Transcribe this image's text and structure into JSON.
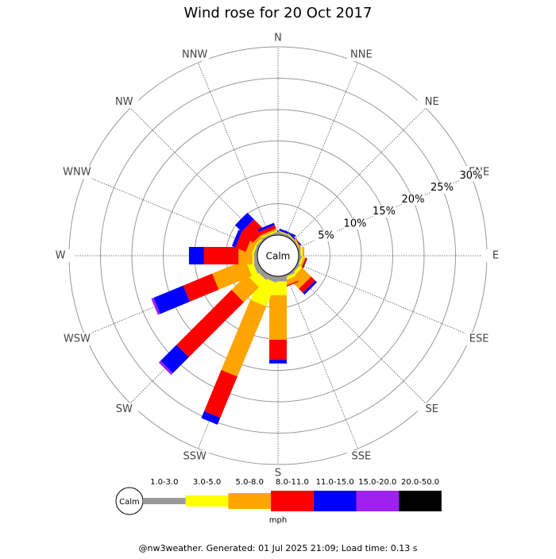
{
  "chart_data": {
    "type": "windrose",
    "title": "Wind rose for 20 Oct 2017",
    "categories": [
      "N",
      "NNE",
      "NE",
      "ENE",
      "E",
      "ESE",
      "SE",
      "SSE",
      "S",
      "SSW",
      "SW",
      "WSW",
      "W",
      "WNW",
      "NW",
      "NNW"
    ],
    "calm_label": "Calm",
    "unit": "mph",
    "footer": "@nw3weather. Generated: 01 Jul 2025 21:09; Load time: 0.13 s",
    "ylim": [
      0,
      30
    ],
    "yticks": [
      {
        "value": 5,
        "label": "5%"
      },
      {
        "value": 10,
        "label": "10%"
      },
      {
        "value": 15,
        "label": "15%"
      },
      {
        "value": 20,
        "label": "20%"
      },
      {
        "value": 25,
        "label": "25%"
      },
      {
        "value": 30,
        "label": "30%"
      }
    ],
    "series": [
      {
        "name": "1.0-3.0",
        "color": "#999999",
        "values": [
          0.3,
          0.3,
          0.2,
          0.2,
          0.3,
          0.3,
          0.3,
          0.3,
          0.8,
          0.8,
          0.8,
          0.8,
          0.5,
          0.4,
          0.3,
          0.3
        ]
      },
      {
        "name": "3.0-5.0",
        "color": "#ffff00",
        "values": [
          0.1,
          0.1,
          0.1,
          0.1,
          0.3,
          0.3,
          0.5,
          0.5,
          2.2,
          4.1,
          1.6,
          1.0,
          0.3,
          0.3,
          0.2,
          0.2
        ]
      },
      {
        "name": "5.0-8.0",
        "color": "#ffa500",
        "values": [
          0.1,
          0.1,
          0.1,
          0.1,
          0.3,
          0.3,
          2.0,
          0.8,
          7.1,
          12.1,
          3.4,
          5.7,
          2.2,
          1.0,
          0.5,
          0.3
        ]
      },
      {
        "name": "8.0-11.0",
        "color": "#ff0000",
        "values": [
          0,
          0,
          0,
          0.1,
          0,
          0.2,
          0.9,
          0.2,
          3.2,
          7.1,
          12.4,
          5.0,
          5.5,
          1.8,
          2.5,
          0.6
        ]
      },
      {
        "name": "11.0-15.0",
        "color": "#0000ff",
        "values": [
          0.2,
          0.3,
          0.2,
          0,
          0,
          0,
          0.4,
          0,
          0.6,
          1.2,
          3.6,
          5.1,
          2.4,
          0.6,
          1.5,
          0.4
        ]
      },
      {
        "name": "15.0-20.0",
        "color": "#a020f0",
        "values": [
          0,
          0,
          0,
          0,
          0,
          0,
          0,
          0,
          0,
          0,
          0.4,
          0.4,
          0,
          0,
          0,
          0
        ]
      },
      {
        "name": "20.0-50.0",
        "color": "#000000",
        "values": [
          0,
          0,
          0,
          0,
          0,
          0.1,
          0,
          0,
          0,
          0,
          0,
          0,
          0,
          0,
          0,
          0
        ]
      }
    ]
  }
}
